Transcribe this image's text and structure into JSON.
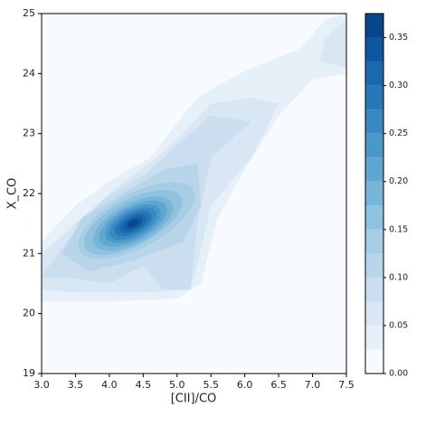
{
  "chart_data": {
    "type": "contour",
    "xlabel": "[CII]/CO",
    "ylabel": "X_CO",
    "xlim": [
      3,
      7.5
    ],
    "ylim": [
      19,
      25
    ],
    "xticks": [
      {
        "value": 3,
        "label": "3.0"
      },
      {
        "value": 3.5,
        "label": "3.5"
      },
      {
        "value": 4,
        "label": "4.0"
      },
      {
        "value": 4.5,
        "label": "4.5"
      },
      {
        "value": 5,
        "label": "5.0"
      },
      {
        "value": 5.5,
        "label": "5.5"
      },
      {
        "value": 6,
        "label": "6.0"
      },
      {
        "value": 6.5,
        "label": "6.5"
      },
      {
        "value": 7,
        "label": "7.0"
      },
      {
        "value": 7.5,
        "label": "7.5"
      }
    ],
    "yticks": [
      19,
      20,
      21,
      22,
      23,
      24,
      25
    ],
    "background": "#f7fbff",
    "contours": [
      {
        "level": 0.025,
        "color": "#e6f0f9",
        "points": [
          [
            3,
            20.2
          ],
          [
            4,
            20.2
          ],
          [
            5,
            20.25
          ],
          [
            5.35,
            20.5
          ],
          [
            5.6,
            21.6
          ],
          [
            6,
            22.4
          ],
          [
            6.5,
            23.3
          ],
          [
            7,
            23.9
          ],
          [
            7.5,
            24
          ],
          [
            7.5,
            25
          ],
          [
            7.2,
            24.9
          ],
          [
            6.8,
            24.4
          ],
          [
            6.1,
            24.1
          ],
          [
            5.6,
            23.8
          ],
          [
            5.3,
            23.6
          ],
          [
            4.6,
            22.6
          ],
          [
            4,
            22.2
          ],
          [
            3.5,
            21.8
          ],
          [
            3,
            21.2
          ]
        ]
      },
      {
        "level": 0.05,
        "color": "#d9e7f5",
        "points": [
          [
            3,
            20.4
          ],
          [
            3.5,
            20.35
          ],
          [
            4.5,
            20.35
          ],
          [
            5.2,
            20.4
          ],
          [
            5.3,
            20.8
          ],
          [
            5.5,
            21.8
          ],
          [
            6.1,
            22.6
          ],
          [
            6.5,
            23.5
          ],
          [
            6.1,
            23.6
          ],
          [
            5.5,
            23.5
          ],
          [
            5.1,
            23
          ],
          [
            4.7,
            22.6
          ],
          [
            4.1,
            22.1
          ],
          [
            3.5,
            21.5
          ],
          [
            3,
            21
          ]
        ]
      },
      {
        "level": 0.05,
        "color": "#d9e7f5",
        "points": [
          [
            7.1,
            24.2
          ],
          [
            7.5,
            24.1
          ],
          [
            7.5,
            24.9
          ],
          [
            7.2,
            24.6
          ]
        ]
      },
      {
        "level": 0.075,
        "color": "#cadef0",
        "points": [
          [
            3,
            20.6
          ],
          [
            3.4,
            20.6
          ],
          [
            4,
            20.5
          ],
          [
            4.5,
            20.8
          ],
          [
            4.8,
            20.4
          ],
          [
            5.2,
            20.4
          ],
          [
            5.3,
            21.5
          ],
          [
            5.5,
            22.6
          ],
          [
            6.1,
            23.2
          ],
          [
            5.5,
            23.3
          ],
          [
            5,
            22.8
          ],
          [
            4.5,
            22.3
          ],
          [
            3.9,
            21.9
          ],
          [
            3.3,
            21.1
          ],
          [
            3.05,
            20.7
          ]
        ]
      },
      {
        "level": 0.1,
        "color": "#b9d5ea",
        "points": [
          [
            3.3,
            21
          ],
          [
            3.7,
            20.7
          ],
          [
            4.4,
            20.9
          ],
          [
            5.1,
            21.2
          ],
          [
            5.35,
            21.8
          ],
          [
            5.3,
            22.5
          ],
          [
            4.8,
            22.4
          ],
          [
            4.2,
            22
          ],
          [
            3.6,
            21.6
          ]
        ]
      },
      {
        "level": 0.125,
        "color": "#a5cde3",
        "cx": 4.4,
        "cy": 21.55,
        "rx": 0.95,
        "ry": 0.45,
        "angle": -28
      },
      {
        "level": 0.15,
        "color": "#8fc2de",
        "cx": 4.35,
        "cy": 21.52,
        "rx": 0.8,
        "ry": 0.38,
        "angle": -28
      },
      {
        "level": 0.175,
        "color": "#77b5d9",
        "cx": 4.35,
        "cy": 21.5,
        "rx": 0.65,
        "ry": 0.33,
        "angle": -28
      },
      {
        "level": 0.2,
        "color": "#5fa6d1",
        "cx": 4.35,
        "cy": 21.5,
        "rx": 0.55,
        "ry": 0.28,
        "angle": -28
      },
      {
        "level": 0.225,
        "color": "#4a98c9",
        "cx": 4.35,
        "cy": 21.5,
        "rx": 0.45,
        "ry": 0.24,
        "angle": -28
      },
      {
        "level": 0.25,
        "color": "#3888c1",
        "cx": 4.35,
        "cy": 21.5,
        "rx": 0.38,
        "ry": 0.2,
        "angle": -28
      },
      {
        "level": 0.275,
        "color": "#2878b8",
        "cx": 4.35,
        "cy": 21.5,
        "rx": 0.3,
        "ry": 0.16,
        "angle": -28
      },
      {
        "level": 0.3,
        "color": "#1a68ae",
        "cx": 4.35,
        "cy": 21.5,
        "rx": 0.22,
        "ry": 0.12,
        "angle": -28
      },
      {
        "level": 0.325,
        "color": "#0e58a2",
        "cx": 4.35,
        "cy": 21.5,
        "rx": 0.15,
        "ry": 0.08,
        "angle": -28
      },
      {
        "level": 0.35,
        "color": "#08468b",
        "cx": 4.35,
        "cy": 21.5,
        "rx": 0.08,
        "ry": 0.05,
        "angle": -28
      }
    ],
    "colorbar": {
      "clim": [
        0,
        0.375
      ],
      "levels": [
        0,
        0.025,
        0.05,
        0.075,
        0.1,
        0.125,
        0.15,
        0.175,
        0.2,
        0.225,
        0.25,
        0.275,
        0.3,
        0.325,
        0.35,
        0.375
      ],
      "colors": [
        "#f7fbff",
        "#e6f0f9",
        "#d9e7f5",
        "#cadef0",
        "#b9d5ea",
        "#a5cde3",
        "#8fc2de",
        "#77b5d9",
        "#5fa6d1",
        "#4a98c9",
        "#3888c1",
        "#2878b8",
        "#1a68ae",
        "#0e58a2",
        "#08468b"
      ],
      "ticks": [
        {
          "value": 0,
          "label": "0.00"
        },
        {
          "value": 0.05,
          "label": "0.05"
        },
        {
          "value": 0.1,
          "label": "0.10"
        },
        {
          "value": 0.15,
          "label": "0.15"
        },
        {
          "value": 0.2,
          "label": "0.20"
        },
        {
          "value": 0.25,
          "label": "0.25"
        },
        {
          "value": 0.3,
          "label": "0.30"
        },
        {
          "value": 0.35,
          "label": "0.35"
        }
      ]
    }
  }
}
